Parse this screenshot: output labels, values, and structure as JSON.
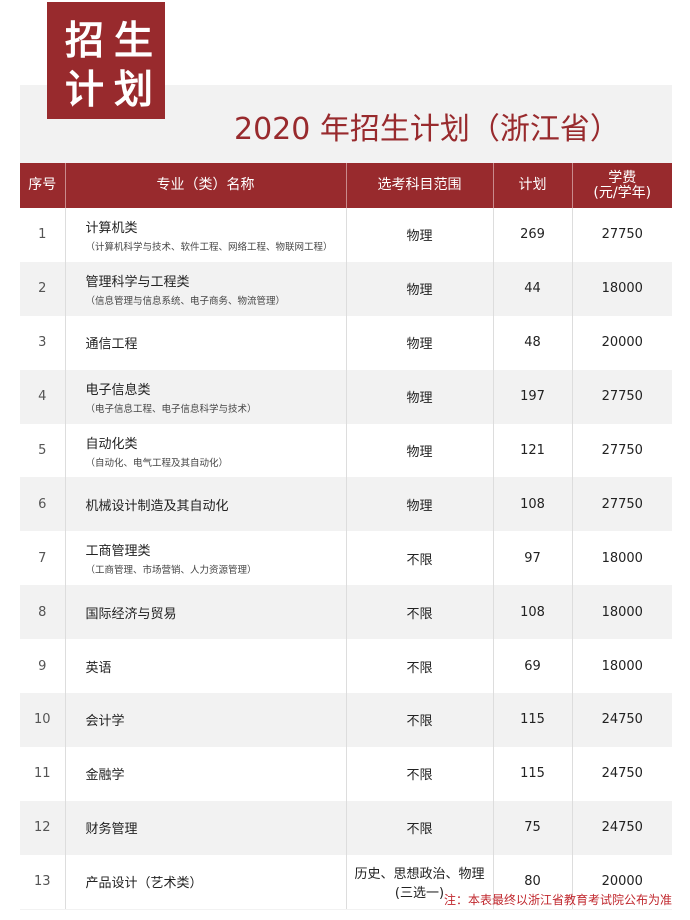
{
  "badge": {
    "line1": "招生",
    "line2": "计划"
  },
  "title": "2020 年招生计划（浙江省）",
  "headers": {
    "idx": "序号",
    "name": "专业（类）名称",
    "subjects": "选考科目范围",
    "plan": "计划",
    "fee": "学费",
    "fee_unit": "(元/学年)"
  },
  "rows": [
    {
      "idx": "1",
      "name": "计算机类",
      "sub": "（计算机科学与技术、软件工程、网络工程、物联网工程）",
      "subjects": "物理",
      "plan": "269",
      "fee": "27750"
    },
    {
      "idx": "2",
      "name": "管理科学与工程类",
      "sub": "（信息管理与信息系统、电子商务、物流管理）",
      "subjects": "物理",
      "plan": "44",
      "fee": "18000"
    },
    {
      "idx": "3",
      "name": "通信工程",
      "sub": "",
      "subjects": "物理",
      "plan": "48",
      "fee": "20000"
    },
    {
      "idx": "4",
      "name": "电子信息类",
      "sub": "（电子信息工程、电子信息科学与技术）",
      "subjects": "物理",
      "plan": "197",
      "fee": "27750"
    },
    {
      "idx": "5",
      "name": "自动化类",
      "sub": "（自动化、电气工程及其自动化）",
      "subjects": "物理",
      "plan": "121",
      "fee": "27750"
    },
    {
      "idx": "6",
      "name": "机械设计制造及其自动化",
      "sub": "",
      "subjects": "物理",
      "plan": "108",
      "fee": "27750"
    },
    {
      "idx": "7",
      "name": "工商管理类",
      "sub": "（工商管理、市场营销、人力资源管理）",
      "subjects": "不限",
      "plan": "97",
      "fee": "18000"
    },
    {
      "idx": "8",
      "name": "国际经济与贸易",
      "sub": "",
      "subjects": "不限",
      "plan": "108",
      "fee": "18000"
    },
    {
      "idx": "9",
      "name": "英语",
      "sub": "",
      "subjects": "不限",
      "plan": "69",
      "fee": "18000"
    },
    {
      "idx": "10",
      "name": "会计学",
      "sub": "",
      "subjects": "不限",
      "plan": "115",
      "fee": "24750"
    },
    {
      "idx": "11",
      "name": "金融学",
      "sub": "",
      "subjects": "不限",
      "plan": "115",
      "fee": "24750"
    },
    {
      "idx": "12",
      "name": "财务管理",
      "sub": "",
      "subjects": "不限",
      "plan": "75",
      "fee": "24750"
    },
    {
      "idx": "13",
      "name": "产品设计（艺术类）",
      "sub": "",
      "subjects": "历史、思想政治、物理",
      "subjects2": "(三选一)",
      "plan": "80",
      "fee": "20000"
    }
  ],
  "note": "注：本表最终以浙江省教育考试院公布为准",
  "colors": {
    "accent": "#982a2d",
    "note": "#c0272d"
  }
}
